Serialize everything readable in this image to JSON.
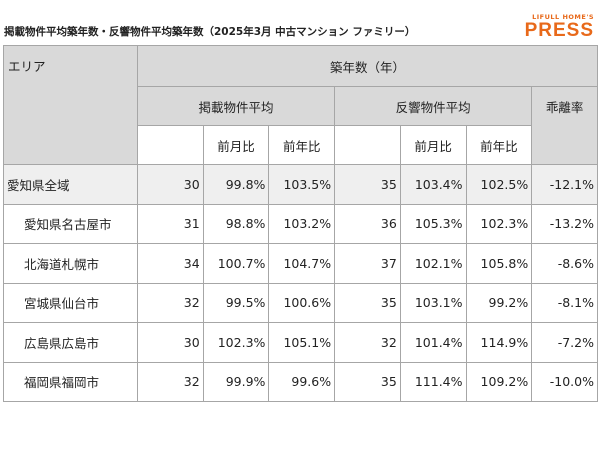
{
  "header": {
    "title": "掲載物件平均築年数・反響物件平均築年数（2025年3月 中古マンション ファミリー）",
    "logo_top": "LIFULL HOME'S",
    "logo_main": "PRESS"
  },
  "table": {
    "area_header": "エリア",
    "group_header": "築年数（年）",
    "subgroups": [
      "掲載物件平均",
      "反響物件平均"
    ],
    "gap_header": "乖離率",
    "sub_columns": [
      "前月比",
      "前年比",
      "前月比",
      "前年比"
    ],
    "rows": [
      [
        "愛知県全域",
        "30",
        "99.8%",
        "103.5%",
        "35",
        "103.4%",
        "102.5%",
        "-12.1%"
      ],
      [
        "愛知県名古屋市",
        "31",
        "98.8%",
        "103.2%",
        "36",
        "105.3%",
        "102.3%",
        "-13.2%"
      ],
      [
        "北海道札幌市",
        "34",
        "100.7%",
        "104.7%",
        "37",
        "102.1%",
        "105.8%",
        "-8.6%"
      ],
      [
        "宮城県仙台市",
        "32",
        "99.5%",
        "100.6%",
        "35",
        "103.1%",
        "99.2%",
        "-8.1%"
      ],
      [
        "広島県広島市",
        "30",
        "102.3%",
        "105.1%",
        "32",
        "101.4%",
        "114.9%",
        "-7.2%"
      ],
      [
        "福岡県福岡市",
        "32",
        "99.9%",
        "99.6%",
        "35",
        "111.4%",
        "109.2%",
        "-10.0%"
      ]
    ]
  }
}
